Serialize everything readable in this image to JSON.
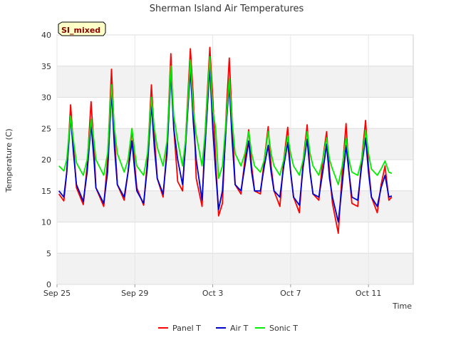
{
  "chart_data": {
    "type": "line",
    "title": "Sherman Island Air Temperatures",
    "xlabel": "Time",
    "ylabel": "Temperature (C)",
    "badge": "SI_mixed",
    "xlim": [
      0,
      18.3
    ],
    "ylim": [
      0,
      40
    ],
    "y_ticks": [
      0,
      5,
      10,
      15,
      20,
      25,
      30,
      35,
      40
    ],
    "x_ticks": [
      {
        "value": 0,
        "label": "Sep 25"
      },
      {
        "value": 4,
        "label": "Sep 29"
      },
      {
        "value": 8,
        "label": "Oct 3"
      },
      {
        "value": 12,
        "label": "Oct 7"
      },
      {
        "value": 16,
        "label": "Oct 11"
      }
    ],
    "grid": true,
    "legend_position": "bottom",
    "series": [
      {
        "name": "Panel T",
        "color": "#ff0000",
        "points": [
          [
            0.1,
            14.5
          ],
          [
            0.35,
            13.4
          ],
          [
            0.5,
            18
          ],
          [
            0.7,
            28.8
          ],
          [
            0.85,
            22
          ],
          [
            1.0,
            15.5
          ],
          [
            1.35,
            12.8
          ],
          [
            1.55,
            19
          ],
          [
            1.75,
            29.3
          ],
          [
            1.9,
            22
          ],
          [
            2.0,
            15.5
          ],
          [
            2.4,
            12.5
          ],
          [
            2.6,
            20
          ],
          [
            2.8,
            34.5
          ],
          [
            2.95,
            24
          ],
          [
            3.1,
            16
          ],
          [
            3.45,
            13.5
          ],
          [
            3.65,
            18
          ],
          [
            3.85,
            25
          ],
          [
            4.0,
            19
          ],
          [
            4.1,
            15.5
          ],
          [
            4.45,
            12.7
          ],
          [
            4.65,
            20
          ],
          [
            4.85,
            32
          ],
          [
            5.0,
            24
          ],
          [
            5.15,
            17
          ],
          [
            5.45,
            14
          ],
          [
            5.65,
            22
          ],
          [
            5.85,
            37
          ],
          [
            6.0,
            25
          ],
          [
            6.2,
            16.5
          ],
          [
            6.45,
            15
          ],
          [
            6.6,
            23
          ],
          [
            6.85,
            37.8
          ],
          [
            7.0,
            30
          ],
          [
            7.15,
            17
          ],
          [
            7.45,
            12.5
          ],
          [
            7.6,
            24
          ],
          [
            7.85,
            38
          ],
          [
            8.0,
            30
          ],
          [
            8.15,
            20
          ],
          [
            8.3,
            11
          ],
          [
            8.5,
            13
          ],
          [
            8.7,
            28
          ],
          [
            8.85,
            36.3
          ],
          [
            9.0,
            26
          ],
          [
            9.15,
            16
          ],
          [
            9.45,
            14.5
          ],
          [
            9.65,
            20
          ],
          [
            9.85,
            24.8
          ],
          [
            10.0,
            19
          ],
          [
            10.15,
            15
          ],
          [
            10.45,
            14.5
          ],
          [
            10.65,
            20
          ],
          [
            10.85,
            25.3
          ],
          [
            11.0,
            19
          ],
          [
            11.15,
            15
          ],
          [
            11.45,
            12.5
          ],
          [
            11.65,
            20
          ],
          [
            11.85,
            25.2
          ],
          [
            12.0,
            18
          ],
          [
            12.15,
            14
          ],
          [
            12.45,
            11.5
          ],
          [
            12.65,
            20
          ],
          [
            12.85,
            25.6
          ],
          [
            13.0,
            18
          ],
          [
            13.15,
            14.5
          ],
          [
            13.45,
            13.5
          ],
          [
            13.65,
            20
          ],
          [
            13.85,
            24.5
          ],
          [
            14.0,
            18
          ],
          [
            14.15,
            13
          ],
          [
            14.45,
            8.2
          ],
          [
            14.65,
            18
          ],
          [
            14.85,
            25.8
          ],
          [
            15.0,
            18
          ],
          [
            15.15,
            13
          ],
          [
            15.45,
            12.5
          ],
          [
            15.65,
            20
          ],
          [
            15.85,
            26.3
          ],
          [
            16.0,
            19
          ],
          [
            16.15,
            14
          ],
          [
            16.45,
            11.5
          ],
          [
            16.65,
            16
          ],
          [
            16.85,
            19
          ],
          [
            17.05,
            13.5
          ],
          [
            17.2,
            14
          ]
        ]
      },
      {
        "name": "Air T",
        "color": "#0000cc",
        "points": [
          [
            0.1,
            15
          ],
          [
            0.35,
            14
          ],
          [
            0.5,
            18
          ],
          [
            0.7,
            27
          ],
          [
            0.85,
            21
          ],
          [
            1.0,
            16
          ],
          [
            1.35,
            13.3
          ],
          [
            1.55,
            18
          ],
          [
            1.75,
            25.8
          ],
          [
            1.9,
            20
          ],
          [
            2.0,
            15.5
          ],
          [
            2.4,
            13
          ],
          [
            2.6,
            18
          ],
          [
            2.8,
            31
          ],
          [
            2.95,
            22
          ],
          [
            3.1,
            16
          ],
          [
            3.45,
            14
          ],
          [
            3.65,
            18
          ],
          [
            3.85,
            23
          ],
          [
            4.0,
            18
          ],
          [
            4.1,
            15
          ],
          [
            4.45,
            13
          ],
          [
            4.65,
            19
          ],
          [
            4.85,
            29
          ],
          [
            5.0,
            22
          ],
          [
            5.15,
            17
          ],
          [
            5.45,
            14.5
          ],
          [
            5.65,
            21
          ],
          [
            5.85,
            34
          ],
          [
            6.0,
            25
          ],
          [
            6.2,
            20
          ],
          [
            6.45,
            16
          ],
          [
            6.6,
            22
          ],
          [
            6.85,
            34.5
          ],
          [
            7.0,
            26
          ],
          [
            7.15,
            20
          ],
          [
            7.45,
            13.5
          ],
          [
            7.6,
            22
          ],
          [
            7.85,
            35
          ],
          [
            8.0,
            25
          ],
          [
            8.15,
            18
          ],
          [
            8.3,
            12
          ],
          [
            8.5,
            15
          ],
          [
            8.7,
            26
          ],
          [
            8.85,
            32
          ],
          [
            9.0,
            23
          ],
          [
            9.15,
            16
          ],
          [
            9.45,
            15
          ],
          [
            9.65,
            19
          ],
          [
            9.85,
            23
          ],
          [
            10.0,
            18
          ],
          [
            10.15,
            15
          ],
          [
            10.45,
            15
          ],
          [
            10.65,
            19
          ],
          [
            10.85,
            22.3
          ],
          [
            11.0,
            18
          ],
          [
            11.15,
            15
          ],
          [
            11.45,
            14
          ],
          [
            11.65,
            19
          ],
          [
            11.85,
            22.8
          ],
          [
            12.0,
            18
          ],
          [
            12.15,
            14
          ],
          [
            12.45,
            12.7
          ],
          [
            12.65,
            19
          ],
          [
            12.85,
            23.3
          ],
          [
            13.0,
            18
          ],
          [
            13.15,
            14.5
          ],
          [
            13.45,
            14
          ],
          [
            13.65,
            18
          ],
          [
            13.85,
            22.5
          ],
          [
            14.0,
            17
          ],
          [
            14.15,
            14
          ],
          [
            14.45,
            10
          ],
          [
            14.65,
            16
          ],
          [
            14.85,
            22.3
          ],
          [
            15.0,
            18
          ],
          [
            15.15,
            14
          ],
          [
            15.45,
            13.5
          ],
          [
            15.65,
            19
          ],
          [
            15.85,
            23.5
          ],
          [
            16.0,
            18
          ],
          [
            16.15,
            14
          ],
          [
            16.45,
            12.5
          ],
          [
            16.65,
            15.5
          ],
          [
            16.85,
            17.5
          ],
          [
            17.05,
            14
          ],
          [
            17.2,
            14.2
          ]
        ]
      },
      {
        "name": "Sonic T",
        "color": "#00ee00",
        "points": [
          [
            0.1,
            19
          ],
          [
            0.35,
            18.2
          ],
          [
            0.5,
            20
          ],
          [
            0.7,
            27
          ],
          [
            0.85,
            23
          ],
          [
            1.0,
            19.5
          ],
          [
            1.35,
            17.5
          ],
          [
            1.55,
            20
          ],
          [
            1.75,
            26.5
          ],
          [
            1.9,
            23
          ],
          [
            2.0,
            20
          ],
          [
            2.4,
            17.5
          ],
          [
            2.6,
            21
          ],
          [
            2.8,
            32
          ],
          [
            2.95,
            25
          ],
          [
            3.1,
            21
          ],
          [
            3.45,
            18
          ],
          [
            3.65,
            20
          ],
          [
            3.85,
            25
          ],
          [
            4.0,
            21
          ],
          [
            4.1,
            19
          ],
          [
            4.45,
            17.5
          ],
          [
            4.65,
            21
          ],
          [
            4.85,
            30
          ],
          [
            5.0,
            25
          ],
          [
            5.15,
            22
          ],
          [
            5.45,
            19
          ],
          [
            5.65,
            23
          ],
          [
            5.85,
            35
          ],
          [
            6.0,
            27
          ],
          [
            6.2,
            23
          ],
          [
            6.45,
            19
          ],
          [
            6.6,
            23
          ],
          [
            6.85,
            36
          ],
          [
            7.0,
            28
          ],
          [
            7.15,
            24
          ],
          [
            7.45,
            19
          ],
          [
            7.6,
            24
          ],
          [
            7.85,
            36.5
          ],
          [
            8.0,
            28
          ],
          [
            8.15,
            25
          ],
          [
            8.3,
            17
          ],
          [
            8.5,
            19
          ],
          [
            8.7,
            27
          ],
          [
            8.85,
            33
          ],
          [
            9.0,
            26
          ],
          [
            9.15,
            21
          ],
          [
            9.45,
            19
          ],
          [
            9.65,
            21
          ],
          [
            9.85,
            24.5
          ],
          [
            10.0,
            21
          ],
          [
            10.15,
            19
          ],
          [
            10.45,
            18
          ],
          [
            10.65,
            20
          ],
          [
            10.85,
            24.5
          ],
          [
            11.0,
            21
          ],
          [
            11.15,
            19
          ],
          [
            11.45,
            17.5
          ],
          [
            11.65,
            20
          ],
          [
            11.85,
            23.8
          ],
          [
            12.0,
            21
          ],
          [
            12.15,
            19
          ],
          [
            12.45,
            17.5
          ],
          [
            12.65,
            20
          ],
          [
            12.85,
            24.5
          ],
          [
            13.0,
            21
          ],
          [
            13.15,
            19
          ],
          [
            13.45,
            17.5
          ],
          [
            13.65,
            20
          ],
          [
            13.85,
            23.5
          ],
          [
            14.0,
            20
          ],
          [
            14.15,
            18.5
          ],
          [
            14.45,
            16
          ],
          [
            14.65,
            19
          ],
          [
            14.85,
            23.5
          ],
          [
            15.0,
            20
          ],
          [
            15.15,
            18
          ],
          [
            15.45,
            17.5
          ],
          [
            15.65,
            20
          ],
          [
            15.85,
            24.7
          ],
          [
            16.0,
            21
          ],
          [
            16.15,
            18.5
          ],
          [
            16.45,
            17.5
          ],
          [
            16.65,
            18.5
          ],
          [
            16.85,
            19.8
          ],
          [
            17.05,
            18
          ],
          [
            17.2,
            17.8
          ]
        ]
      }
    ]
  }
}
